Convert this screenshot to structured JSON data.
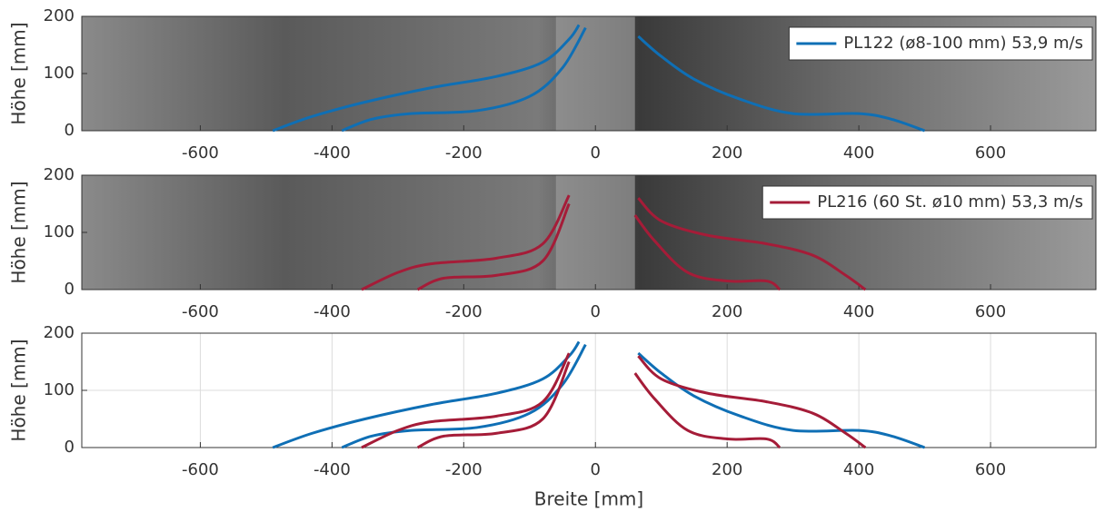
{
  "chart_data": [
    {
      "type": "line",
      "image_background": true,
      "legend": "upper right",
      "xlim": [
        -780,
        760
      ],
      "ylim": [
        0,
        200
      ],
      "xticks": [
        -600,
        -400,
        -200,
        0,
        200,
        400,
        600
      ],
      "yticks": [
        0,
        100,
        200
      ],
      "ylabel": "Höhe [mm]",
      "series": [
        {
          "name": "PL122 (ø8-100 mm) 53,9 m/s",
          "color": "#0f6fb5",
          "x": [
            -490,
            -430,
            -350,
            -250,
            -150,
            -80,
            -40,
            -25,
            null,
            -385,
            -340,
            -280,
            -180,
            -100,
            -50,
            -15,
            null,
            65,
            100,
            150,
            220,
            300,
            400,
            450,
            500
          ],
          "values": [
            0,
            25,
            50,
            75,
            95,
            120,
            160,
            185,
            null,
            0,
            20,
            30,
            35,
            60,
            110,
            180,
            null,
            165,
            130,
            90,
            55,
            30,
            30,
            20,
            0
          ]
        }
      ]
    },
    {
      "type": "line",
      "image_background": true,
      "legend": "upper right",
      "xlim": [
        -780,
        760
      ],
      "ylim": [
        0,
        200
      ],
      "xticks": [
        -600,
        -400,
        -200,
        0,
        200,
        400,
        600
      ],
      "yticks": [
        0,
        100,
        200
      ],
      "ylabel": "Höhe [mm]",
      "series": [
        {
          "name": "PL216 (60 St. ø10 mm) 53,3 m/s",
          "color": "#a51c38",
          "x": [
            -355,
            -300,
            -250,
            -150,
            -80,
            -40,
            null,
            -270,
            -230,
            -150,
            -80,
            -40,
            null,
            65,
            100,
            170,
            260,
            330,
            380,
            410,
            null,
            60,
            90,
            140,
            200,
            260,
            280
          ],
          "values": [
            0,
            30,
            45,
            55,
            80,
            165,
            null,
            0,
            20,
            25,
            50,
            150,
            null,
            160,
            120,
            95,
            80,
            60,
            25,
            0,
            null,
            130,
            85,
            30,
            15,
            15,
            0
          ]
        }
      ]
    },
    {
      "type": "line",
      "image_background": false,
      "grid": true,
      "xlim": [
        -780,
        760
      ],
      "ylim": [
        0,
        200
      ],
      "xticks": [
        -600,
        -400,
        -200,
        0,
        200,
        400,
        600
      ],
      "yticks": [
        0,
        100,
        200
      ],
      "ylabel": "Höhe [mm]",
      "xlabel": "Breite [mm]",
      "series": [
        {
          "color": "#0f6fb5",
          "x": [
            -490,
            -430,
            -350,
            -250,
            -150,
            -80,
            -40,
            -25,
            null,
            -385,
            -340,
            -280,
            -180,
            -100,
            -50,
            -15,
            null,
            65,
            100,
            150,
            220,
            300,
            400,
            450,
            500
          ],
          "values": [
            0,
            25,
            50,
            75,
            95,
            120,
            160,
            185,
            null,
            0,
            20,
            30,
            35,
            60,
            110,
            180,
            null,
            165,
            130,
            90,
            55,
            30,
            30,
            20,
            0
          ]
        },
        {
          "color": "#a51c38",
          "x": [
            -355,
            -300,
            -250,
            -150,
            -80,
            -40,
            null,
            -270,
            -230,
            -150,
            -80,
            -40,
            null,
            65,
            100,
            170,
            260,
            330,
            380,
            410,
            null,
            60,
            90,
            140,
            200,
            260,
            280
          ],
          "values": [
            0,
            30,
            45,
            55,
            80,
            165,
            null,
            0,
            20,
            25,
            50,
            150,
            null,
            160,
            120,
            95,
            80,
            60,
            25,
            0,
            null,
            130,
            85,
            30,
            15,
            15,
            0
          ]
        }
      ]
    }
  ]
}
